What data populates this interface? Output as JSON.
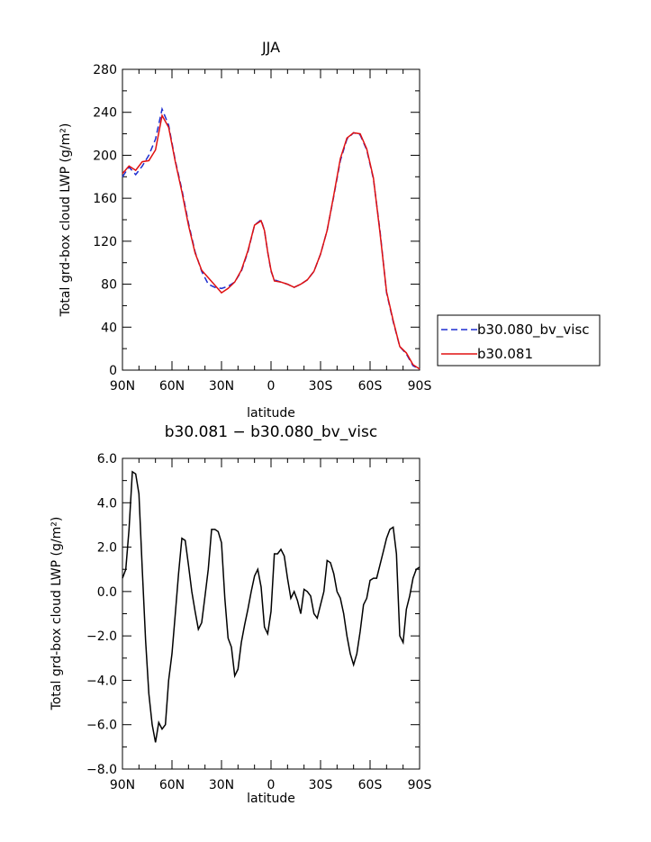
{
  "chart_data": [
    {
      "type": "line",
      "title": "JJA",
      "xlabel": "latitude",
      "ylabel": "Total grd-box cloud LWP (g/m²)",
      "x": [
        -90,
        -86,
        -82,
        -78,
        -74,
        -70,
        -66,
        -62,
        -58,
        -54,
        -50,
        -46,
        -42,
        -38,
        -34,
        -30,
        -26,
        -22,
        -18,
        -14,
        -10,
        -6,
        -4,
        -2,
        0,
        2,
        6,
        10,
        14,
        18,
        22,
        26,
        30,
        34,
        38,
        42,
        46,
        50,
        54,
        58,
        62,
        66,
        70,
        74,
        78,
        82,
        86,
        90
      ],
      "xlim": [
        -90,
        90
      ],
      "ylim": [
        0,
        280
      ],
      "xticks": [
        -90,
        -60,
        -30,
        0,
        30,
        60,
        90
      ],
      "xticklabels": [
        "90N",
        "60N",
        "30N",
        "0",
        "30S",
        "60S",
        "90S"
      ],
      "yticks": [
        0,
        40,
        80,
        120,
        160,
        200,
        240,
        280
      ],
      "yticklabels": [
        "0",
        "40",
        "80",
        "120",
        "160",
        "200",
        "240",
        "280"
      ],
      "legend_placement": "right",
      "series": [
        {
          "name": "b30.080_bv_visc",
          "color": "#1f2fd0",
          "dash": "dashed",
          "values": [
            180,
            189,
            182,
            190,
            200,
            215,
            243,
            228,
            195,
            168,
            137,
            110,
            92,
            80,
            77,
            76,
            78,
            82,
            92,
            110,
            135,
            140,
            130,
            110,
            92,
            84,
            82,
            80,
            77,
            80,
            84,
            92,
            108,
            130,
            162,
            195,
            215,
            221,
            219,
            205,
            178,
            130,
            72,
            45,
            22,
            15,
            4,
            1
          ]
        },
        {
          "name": "b30.081",
          "color": "#e01010",
          "dash": "solid",
          "values": [
            183,
            190,
            186,
            194,
            195,
            205,
            237,
            226,
            194,
            166,
            135,
            109,
            93,
            86,
            79,
            72,
            76,
            82,
            93,
            111,
            135,
            139,
            130,
            110,
            93,
            83,
            82,
            80,
            77,
            80,
            84,
            92,
            108,
            130,
            163,
            197,
            216,
            221,
            220,
            206,
            179,
            128,
            73,
            46,
            22,
            16,
            5,
            1
          ]
        }
      ]
    },
    {
      "type": "line",
      "title": "b30.081 − b30.080_bv_visc",
      "xlabel": "latitude",
      "ylabel": "Total grd-box cloud LWP (g/m²)",
      "x": [
        -90,
        -88,
        -86,
        -84,
        -82,
        -80,
        -78,
        -76,
        -74,
        -72,
        -70,
        -68,
        -66,
        -64,
        -62,
        -60,
        -58,
        -56,
        -54,
        -52,
        -50,
        -48,
        -46,
        -44,
        -42,
        -40,
        -38,
        -36,
        -34,
        -32,
        -30,
        -28,
        -26,
        -24,
        -22,
        -20,
        -18,
        -16,
        -14,
        -12,
        -10,
        -8,
        -6,
        -4,
        -2,
        0,
        2,
        4,
        6,
        8,
        10,
        12,
        14,
        16,
        18,
        20,
        22,
        24,
        26,
        28,
        30,
        32,
        34,
        36,
        38,
        40,
        42,
        44,
        46,
        48,
        50,
        52,
        54,
        56,
        58,
        60,
        62,
        64,
        66,
        68,
        70,
        72,
        74,
        76,
        78,
        80,
        82,
        84,
        86,
        88,
        90
      ],
      "xlim": [
        -90,
        90
      ],
      "ylim": [
        -8,
        6
      ],
      "xticks": [
        -90,
        -60,
        -30,
        0,
        30,
        60,
        90
      ],
      "xticklabels": [
        "90N",
        "60N",
        "30N",
        "0",
        "30S",
        "60S",
        "90S"
      ],
      "yticks": [
        -8,
        -6,
        -4,
        -2,
        0,
        2,
        4,
        6
      ],
      "yticklabels": [
        "−8.0",
        "−6.0",
        "−4.0",
        "−2.0",
        "0.0",
        "2.0",
        "4.0",
        "6.0"
      ],
      "series": [
        {
          "color": "#000000",
          "dash": "solid",
          "values": [
            0.6,
            1.0,
            2.8,
            5.4,
            5.3,
            4.4,
            1.0,
            -2.2,
            -4.6,
            -6.0,
            -6.8,
            -5.9,
            -6.2,
            -6.0,
            -4.0,
            -2.8,
            -1.0,
            0.8,
            2.4,
            2.3,
            1.2,
            0.0,
            -0.9,
            -1.7,
            -1.4,
            -0.2,
            1.0,
            2.8,
            2.8,
            2.7,
            2.2,
            -0.3,
            -2.1,
            -2.5,
            -3.8,
            -3.5,
            -2.3,
            -1.5,
            -0.8,
            0.0,
            0.7,
            1.0,
            0.2,
            -1.6,
            -1.9,
            -0.9,
            1.7,
            1.7,
            1.9,
            1.6,
            0.6,
            -0.3,
            0.0,
            -0.4,
            -1.0,
            0.1,
            0.0,
            -0.2,
            -1.0,
            -1.2,
            -0.6,
            0.0,
            1.4,
            1.3,
            0.8,
            0.0,
            -0.3,
            -1.0,
            -2.0,
            -2.8,
            -3.3,
            -2.8,
            -1.8,
            -0.6,
            -0.3,
            0.5,
            0.6,
            0.6,
            1.2,
            1.8,
            2.4,
            2.8,
            2.9,
            1.7,
            -2.0,
            -2.3,
            -0.8,
            -0.2,
            0.6,
            1.0,
            1.1
          ]
        }
      ]
    }
  ]
}
